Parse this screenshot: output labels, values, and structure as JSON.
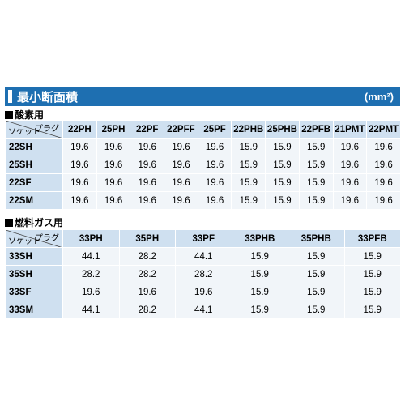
{
  "header": {
    "title": "最小断面積",
    "unit": "(mm²)"
  },
  "corner": {
    "plug_label": "プラグ",
    "socket_label": "ソケット"
  },
  "sections": [
    {
      "label": "酸素用",
      "columns": [
        "22PH",
        "25PH",
        "22PF",
        "22PFF",
        "25PF",
        "22PHB",
        "25PHB",
        "22PFB",
        "21PMT",
        "22PMT"
      ],
      "rows": [
        {
          "name": "22SH",
          "values": [
            "19.6",
            "19.6",
            "19.6",
            "19.6",
            "19.6",
            "15.9",
            "15.9",
            "15.9",
            "19.6",
            "19.6"
          ]
        },
        {
          "name": "25SH",
          "values": [
            "19.6",
            "19.6",
            "19.6",
            "19.6",
            "19.6",
            "15.9",
            "15.9",
            "15.9",
            "19.6",
            "19.6"
          ]
        },
        {
          "name": "22SF",
          "values": [
            "19.6",
            "19.6",
            "19.6",
            "19.6",
            "19.6",
            "15.9",
            "15.9",
            "15.9",
            "19.6",
            "19.6"
          ]
        },
        {
          "name": "22SM",
          "values": [
            "19.6",
            "19.6",
            "19.6",
            "19.6",
            "19.6",
            "15.9",
            "15.9",
            "15.9",
            "19.6",
            "19.6"
          ]
        }
      ]
    },
    {
      "label": "燃料ガス用",
      "columns": [
        "33PH",
        "35PH",
        "33PF",
        "33PHB",
        "35PHB",
        "33PFB"
      ],
      "rows": [
        {
          "name": "33SH",
          "values": [
            "44.1",
            "28.2",
            "44.1",
            "15.9",
            "15.9",
            "15.9"
          ]
        },
        {
          "name": "35SH",
          "values": [
            "28.2",
            "28.2",
            "28.2",
            "15.9",
            "15.9",
            "15.9"
          ]
        },
        {
          "name": "33SF",
          "values": [
            "19.6",
            "19.6",
            "19.6",
            "15.9",
            "15.9",
            "15.9"
          ]
        },
        {
          "name": "33SM",
          "values": [
            "44.1",
            "28.2",
            "44.1",
            "15.9",
            "15.9",
            "15.9"
          ]
        }
      ]
    }
  ]
}
